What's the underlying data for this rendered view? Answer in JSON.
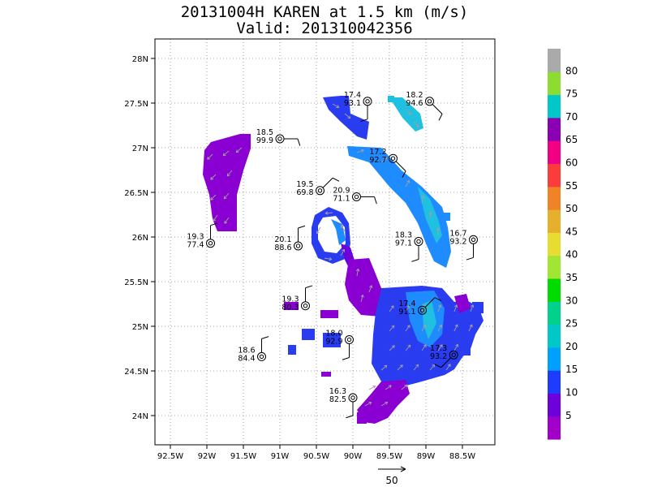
{
  "title": {
    "line1": "20131004H KAREN at 1.5 km (m/s)",
    "line2": "Valid: 201310042356"
  },
  "x_axis": {
    "ticks": [
      {
        "lon": -92.5,
        "label": "92.5W"
      },
      {
        "lon": -92,
        "label": "92W"
      },
      {
        "lon": -91.5,
        "label": "91.5W"
      },
      {
        "lon": -91,
        "label": "91W"
      },
      {
        "lon": -90.5,
        "label": "90.5W"
      },
      {
        "lon": -90,
        "label": "90W"
      },
      {
        "lon": -89.5,
        "label": "89.5W"
      },
      {
        "lon": -89,
        "label": "89W"
      },
      {
        "lon": -88.5,
        "label": "88.5W"
      }
    ]
  },
  "y_axis": {
    "ticks": [
      {
        "lat": 28,
        "label": "28N"
      },
      {
        "lat": 27.5,
        "label": "27.5N"
      },
      {
        "lat": 27,
        "label": "27N"
      },
      {
        "lat": 26.5,
        "label": "26.5N"
      },
      {
        "lat": 26,
        "label": "26N"
      },
      {
        "lat": 25.5,
        "label": "25.5N"
      },
      {
        "lat": 25,
        "label": "25N"
      },
      {
        "lat": 24.5,
        "label": "24.5N"
      },
      {
        "lat": 24,
        "label": "24N"
      }
    ]
  },
  "map_extent": {
    "lon_min": -92.7,
    "lon_max": -88.25,
    "lat_min": 23.7,
    "lat_max": 28.1
  },
  "colorbar": {
    "labels": [
      "5",
      "10",
      "15",
      "20",
      "25",
      "30",
      "35",
      "40",
      "45",
      "50",
      "55",
      "60",
      "65",
      "70",
      "75",
      "80"
    ],
    "colors": [
      "#a000c8",
      "#6e00dc",
      "#1e3cff",
      "#00a0ff",
      "#00c8c8",
      "#00d28c",
      "#00dc00",
      "#a0e632",
      "#e6dc32",
      "#e6af2d",
      "#f08228",
      "#fa3c3c",
      "#f00082",
      "#8c00b4",
      "#00c8c8",
      "#8cdc32",
      "#aaaaaa"
    ]
  },
  "reference_vector": {
    "label": "50"
  },
  "stations": [
    {
      "lon": -89.8,
      "lat": 27.52,
      "t1": "17.4",
      "t2": "93.1",
      "barb": "S",
      "side": "l"
    },
    {
      "lon": -88.95,
      "lat": 27.52,
      "t1": "18.2",
      "t2": "94.6",
      "barb": "SE",
      "side": "l"
    },
    {
      "lon": -91.0,
      "lat": 27.1,
      "t1": "18.5",
      "t2": "99.9",
      "barb": "E",
      "side": "l"
    },
    {
      "lon": -89.45,
      "lat": 26.88,
      "t1": "17.2",
      "t2": "92.7",
      "barb": "SE",
      "side": "l"
    },
    {
      "lon": -90.45,
      "lat": 26.52,
      "t1": "19.5",
      "t2": "69.8",
      "barb": "NE",
      "side": "l"
    },
    {
      "lon": -89.95,
      "lat": 26.45,
      "t1": "20.9",
      "t2": "71.1",
      "barb": "E",
      "side": "l"
    },
    {
      "lon": -91.95,
      "lat": 25.93,
      "t1": "19.3",
      "t2": "77.4",
      "barb": "N",
      "side": "l"
    },
    {
      "lon": -90.75,
      "lat": 25.9,
      "t1": "20.1",
      "t2": "88.6",
      "barb": "N",
      "side": "l"
    },
    {
      "lon": -89.1,
      "lat": 25.95,
      "t1": "18.3",
      "t2": "97.1",
      "barb": "S",
      "side": "l"
    },
    {
      "lon": -88.35,
      "lat": 25.97,
      "t1": "16.7",
      "t2": "93.2",
      "barb": "S",
      "side": "l"
    },
    {
      "lon": -90.65,
      "lat": 25.23,
      "t1": "19.3",
      "t2": "80.3",
      "barb": "N",
      "side": "l"
    },
    {
      "lon": -89.05,
      "lat": 25.18,
      "t1": "17.4",
      "t2": "91.1",
      "barb": "NE",
      "side": "l"
    },
    {
      "lon": -90.05,
      "lat": 24.85,
      "t1": "18.0",
      "t2": "92.9",
      "barb": "S",
      "side": "l"
    },
    {
      "lon": -91.25,
      "lat": 24.66,
      "t1": "18.6",
      "t2": "84.4",
      "barb": "N",
      "side": "l"
    },
    {
      "lon": -88.62,
      "lat": 24.68,
      "t1": "17.3",
      "t2": "93.2",
      "barb": "SW",
      "side": "l"
    },
    {
      "lon": -90.0,
      "lat": 24.2,
      "t1": "16.3",
      "t2": "82.5",
      "barb": "S",
      "side": "l"
    }
  ]
}
